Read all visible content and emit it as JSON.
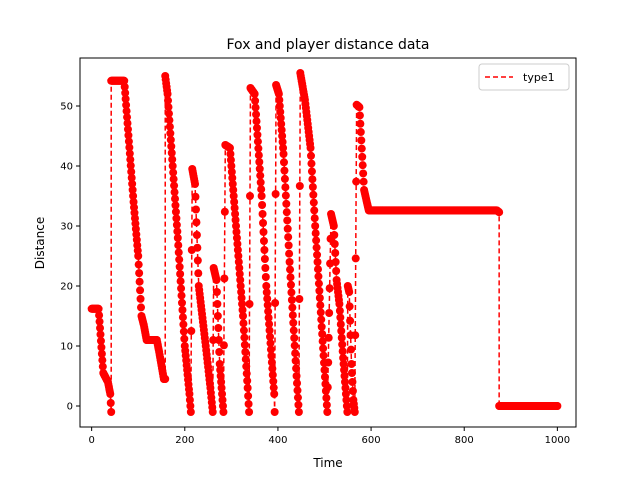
{
  "chart_data": {
    "type": "line",
    "title": "Fox and player distance data",
    "xlabel": "Time",
    "ylabel": "Distance",
    "xlim": [
      -25,
      1040
    ],
    "ylim": [
      -3.5,
      58
    ],
    "xticks": [
      0,
      200,
      400,
      600,
      800,
      1000
    ],
    "yticks": [
      0,
      10,
      20,
      30,
      40,
      50
    ],
    "grid": false,
    "legend_position": "top-right",
    "colors": {
      "series": "#ff0000",
      "axes": "#000000",
      "background": "#ffffff"
    },
    "series": [
      {
        "name": "type1",
        "line_style": "dashed",
        "marker": "circle",
        "color": "#ff0000",
        "keypoints": [
          [
            0,
            16.2
          ],
          [
            15,
            16.2
          ],
          [
            25,
            5.5
          ],
          [
            35,
            4.0
          ],
          [
            40,
            2.0
          ],
          [
            42,
            -1.0
          ],
          [
            42,
            54.2
          ],
          [
            70,
            54.2
          ],
          [
            90,
            34.0
          ],
          [
            100,
            25.0
          ],
          [
            107,
            15.0
          ],
          [
            112,
            13.5
          ],
          [
            118,
            11.0
          ],
          [
            140,
            11.0
          ],
          [
            145,
            9.0
          ],
          [
            155,
            4.5
          ],
          [
            158,
            4.5
          ],
          [
            158,
            55.0
          ],
          [
            163,
            52.0
          ],
          [
            185,
            28.0
          ],
          [
            200,
            10.0
          ],
          [
            210,
            2.0
          ],
          [
            213,
            -1.0
          ],
          [
            216,
            39.5
          ],
          [
            222,
            37.0
          ],
          [
            230,
            20.0
          ],
          [
            245,
            10.0
          ],
          [
            255,
            3.0
          ],
          [
            260,
            -1.0
          ],
          [
            262,
            23.0
          ],
          [
            268,
            21.0
          ],
          [
            275,
            7.0
          ],
          [
            283,
            -1.0
          ],
          [
            287,
            43.5
          ],
          [
            297,
            43.0
          ],
          [
            310,
            30.0
          ],
          [
            325,
            15.0
          ],
          [
            335,
            3.0
          ],
          [
            338,
            -1.0
          ],
          [
            341,
            53.0
          ],
          [
            350,
            52.0
          ],
          [
            365,
            35.0
          ],
          [
            375,
            20.0
          ],
          [
            392,
            2.0
          ],
          [
            393,
            -1.0
          ],
          [
            396,
            53.5
          ],
          [
            402,
            52.0
          ],
          [
            412,
            42.0
          ],
          [
            425,
            24.0
          ],
          [
            440,
            5.0
          ],
          [
            445,
            -1.0
          ],
          [
            448,
            55.5
          ],
          [
            458,
            51.0
          ],
          [
            470,
            43.0
          ],
          [
            480,
            30.0
          ],
          [
            490,
            18.0
          ],
          [
            500,
            6.0
          ],
          [
            506,
            -1.0
          ],
          [
            514,
            32.0
          ],
          [
            520,
            30.0
          ],
          [
            526,
            21.0
          ],
          [
            532,
            17.0
          ],
          [
            540,
            8.0
          ],
          [
            546,
            2.0
          ],
          [
            549,
            -1.0
          ],
          [
            550,
            20.0
          ],
          [
            553,
            19.0
          ],
          [
            558,
            7.0
          ],
          [
            562,
            1.0
          ],
          [
            565,
            -1.0
          ],
          [
            569,
            50.2
          ],
          [
            575,
            49.8
          ],
          [
            585,
            36.0
          ],
          [
            595,
            32.6
          ],
          [
            870,
            32.6
          ],
          [
            875,
            32.3
          ],
          [
            875,
            0.0
          ],
          [
            1000,
            0.0
          ]
        ]
      }
    ]
  }
}
